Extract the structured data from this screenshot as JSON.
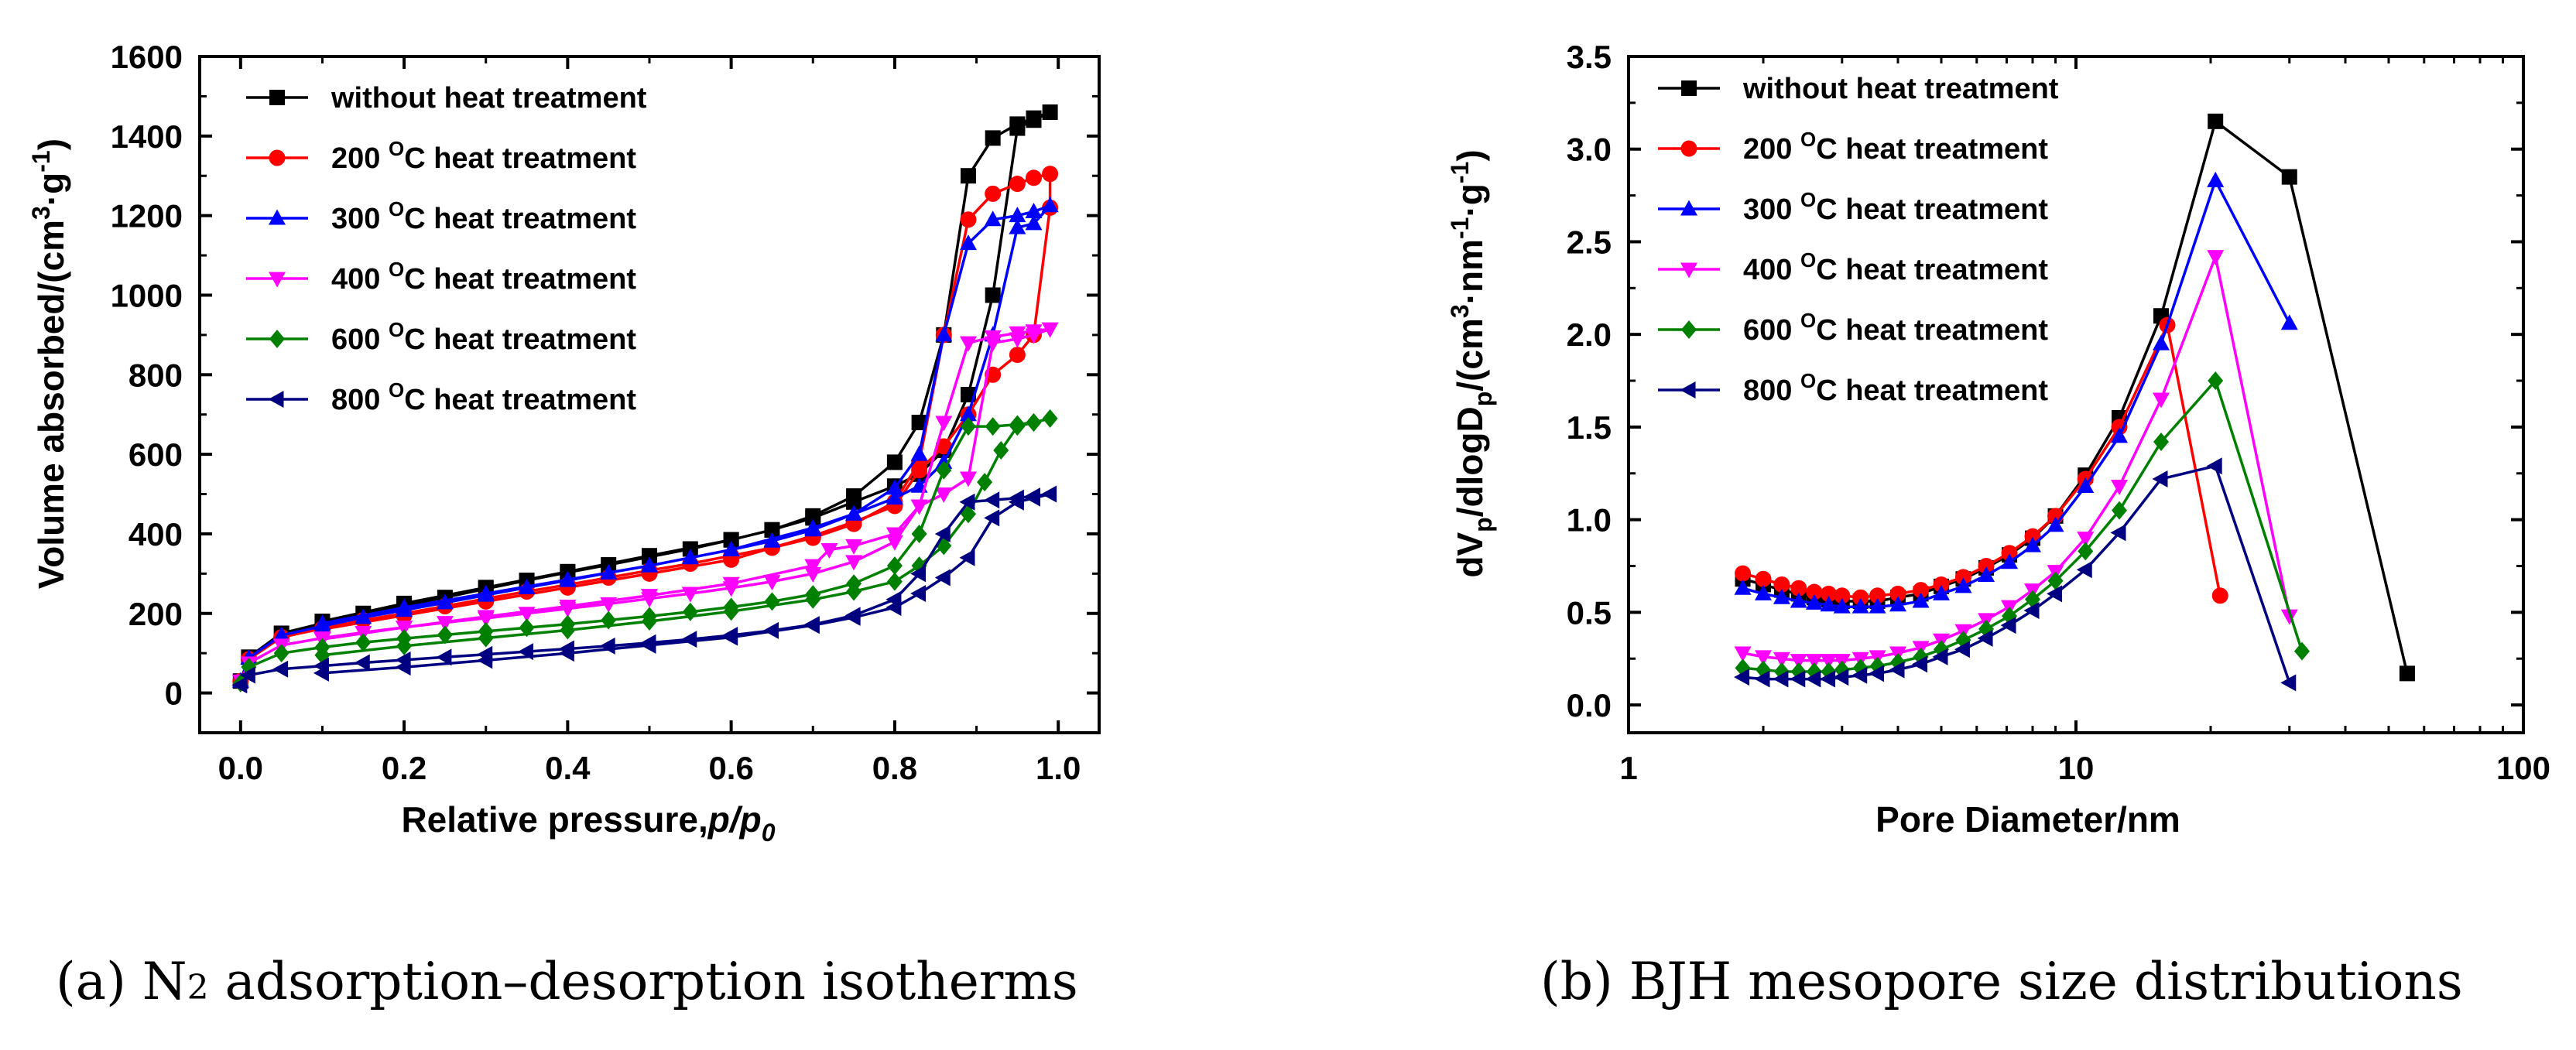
{
  "captions": {
    "a_prefix": "(a) N",
    "a_sub": "2",
    "a_suffix": " adsorption–desorption isotherms",
    "b": "(b) BJH mesopore size distributions"
  },
  "chart_data": [
    {
      "type": "line",
      "xscale": "linear",
      "title": "",
      "xlabel": "Relative pressure,",
      "xlabel_italic": "p/p",
      "xlabel_sub": "0",
      "ylabel_text": "Volume absorbed/(cm",
      "ylabel_sup1": "3",
      "ylabel_mid": "·g",
      "ylabel_sup2": "-1",
      "ylabel_end": ")",
      "xlim": [
        -0.05,
        1.05
      ],
      "ylim": [
        -100,
        1600
      ],
      "xticks": [
        0.0,
        0.2,
        0.4,
        0.6,
        0.8,
        1.0
      ],
      "xtick_labels": [
        "0.0",
        "0.2",
        "0.4",
        "0.6",
        "0.8",
        "1.0"
      ],
      "yticks": [
        0,
        200,
        400,
        600,
        800,
        1000,
        1200,
        1400,
        1600
      ],
      "ytick_labels": [
        "0",
        "200",
        "400",
        "600",
        "800",
        "1000",
        "1200",
        "1400",
        "1600"
      ],
      "legend_position": "top-left",
      "series": [
        {
          "name": "without heat treatment",
          "temp": "",
          "color": "#000000",
          "marker": "square",
          "x": [
            0.0,
            0.01,
            0.05,
            0.1,
            0.15,
            0.2,
            0.25,
            0.3,
            0.35,
            0.4,
            0.45,
            0.5,
            0.55,
            0.6,
            0.65,
            0.7,
            0.75,
            0.8,
            0.83,
            0.86,
            0.89,
            0.92,
            0.95,
            0.97,
            0.99,
            0.97,
            0.95,
            0.92,
            0.89,
            0.86,
            0.83,
            0.8,
            0.75,
            0.7,
            0.65,
            0.6,
            0.5,
            0.4,
            0.3,
            0.2,
            0.1
          ],
          "y": [
            30,
            90,
            150,
            175,
            200,
            220,
            240,
            262,
            283,
            303,
            322,
            342,
            362,
            385,
            410,
            445,
            495,
            580,
            680,
            900,
            1300,
            1395,
            1430,
            1445,
            1460,
            1440,
            1420,
            1000,
            750,
            610,
            550,
            520,
            480,
            440,
            410,
            385,
            345,
            305,
            265,
            225,
            180
          ]
        },
        {
          "name": "200 heat treatment",
          "temp": "200",
          "color": "#ff0000",
          "marker": "circle",
          "x": [
            0.0,
            0.01,
            0.05,
            0.1,
            0.15,
            0.2,
            0.25,
            0.3,
            0.35,
            0.4,
            0.45,
            0.5,
            0.55,
            0.6,
            0.65,
            0.7,
            0.75,
            0.8,
            0.83,
            0.86,
            0.89,
            0.92,
            0.95,
            0.97,
            0.99,
            0.99,
            0.97,
            0.95,
            0.92,
            0.89,
            0.86,
            0.83,
            0.8,
            0.75,
            0.7,
            0.6,
            0.5,
            0.4,
            0.3,
            0.2,
            0.1
          ],
          "y": [
            30,
            85,
            140,
            162,
            183,
            200,
            218,
            237,
            255,
            272,
            290,
            308,
            325,
            345,
            365,
            390,
            425,
            480,
            580,
            900,
            1190,
            1255,
            1280,
            1295,
            1305,
            1220,
            900,
            850,
            800,
            700,
            620,
            560,
            470,
            430,
            395,
            335,
            300,
            265,
            230,
            195,
            160
          ]
        },
        {
          "name": "300 heat treatment",
          "temp": "300",
          "color": "#0000ff",
          "marker": "triangle-up",
          "x": [
            0.0,
            0.01,
            0.05,
            0.1,
            0.15,
            0.2,
            0.25,
            0.3,
            0.35,
            0.4,
            0.45,
            0.5,
            0.55,
            0.6,
            0.65,
            0.7,
            0.75,
            0.8,
            0.83,
            0.86,
            0.89,
            0.92,
            0.95,
            0.97,
            0.99,
            0.97,
            0.95,
            0.92,
            0.89,
            0.86,
            0.83,
            0.8,
            0.75,
            0.7,
            0.6,
            0.5,
            0.4,
            0.3,
            0.2,
            0.1
          ],
          "y": [
            30,
            88,
            145,
            168,
            190,
            208,
            227,
            246,
            265,
            283,
            302,
            320,
            340,
            360,
            382,
            410,
            450,
            515,
            600,
            900,
            1130,
            1190,
            1200,
            1210,
            1225,
            1180,
            1170,
            900,
            700,
            580,
            520,
            490,
            450,
            415,
            360,
            320,
            285,
            250,
            215,
            175
          ]
        },
        {
          "name": "400 heat treatment",
          "temp": "400",
          "color": "#ff00ff",
          "marker": "triangle-down",
          "x": [
            0.0,
            0.01,
            0.05,
            0.1,
            0.15,
            0.2,
            0.25,
            0.3,
            0.35,
            0.4,
            0.45,
            0.5,
            0.55,
            0.6,
            0.65,
            0.7,
            0.75,
            0.8,
            0.83,
            0.86,
            0.89,
            0.92,
            0.95,
            0.97,
            0.99,
            0.97,
            0.95,
            0.92,
            0.89,
            0.86,
            0.83,
            0.8,
            0.75,
            0.72,
            0.7,
            0.6,
            0.5,
            0.4,
            0.3,
            0.2,
            0.1
          ],
          "y": [
            30,
            75,
            120,
            138,
            152,
            165,
            177,
            188,
            200,
            212,
            224,
            237,
            250,
            264,
            280,
            300,
            330,
            380,
            470,
            680,
            880,
            895,
            905,
            910,
            915,
            900,
            890,
            880,
            540,
            500,
            470,
            400,
            370,
            360,
            320,
            275,
            245,
            218,
            192,
            165,
            135
          ]
        },
        {
          "name": "600 heat treatment",
          "temp": "600",
          "color": "#008000",
          "marker": "diamond",
          "x": [
            0.0,
            0.01,
            0.05,
            0.1,
            0.15,
            0.2,
            0.25,
            0.3,
            0.35,
            0.4,
            0.45,
            0.5,
            0.55,
            0.6,
            0.65,
            0.7,
            0.75,
            0.8,
            0.83,
            0.86,
            0.89,
            0.92,
            0.95,
            0.97,
            0.99,
            0.97,
            0.95,
            0.93,
            0.91,
            0.89,
            0.86,
            0.83,
            0.8,
            0.75,
            0.7,
            0.6,
            0.5,
            0.4,
            0.3,
            0.2,
            0.1
          ],
          "y": [
            25,
            65,
            100,
            115,
            127,
            137,
            146,
            155,
            164,
            173,
            183,
            193,
            204,
            216,
            230,
            248,
            275,
            320,
            400,
            560,
            670,
            670,
            675,
            680,
            690,
            680,
            670,
            610,
            530,
            450,
            370,
            320,
            280,
            255,
            235,
            205,
            180,
            158,
            138,
            118,
            95
          ]
        },
        {
          "name": "800 heat treatment",
          "temp": "800",
          "color": "#000080",
          "marker": "triangle-left",
          "x": [
            0.0,
            0.01,
            0.05,
            0.1,
            0.15,
            0.2,
            0.25,
            0.3,
            0.35,
            0.4,
            0.45,
            0.5,
            0.55,
            0.6,
            0.65,
            0.7,
            0.75,
            0.8,
            0.83,
            0.86,
            0.89,
            0.92,
            0.95,
            0.97,
            0.99,
            0.97,
            0.95,
            0.92,
            0.89,
            0.86,
            0.83,
            0.8,
            0.75,
            0.7,
            0.6,
            0.5,
            0.4,
            0.3,
            0.2,
            0.1
          ],
          "y": [
            20,
            45,
            60,
            68,
            76,
            83,
            90,
            97,
            104,
            111,
            118,
            126,
            135,
            145,
            157,
            172,
            195,
            235,
            300,
            400,
            480,
            485,
            490,
            495,
            500,
            490,
            480,
            440,
            340,
            290,
            250,
            215,
            190,
            170,
            140,
            120,
            100,
            82,
            65,
            50
          ]
        }
      ]
    },
    {
      "type": "line",
      "xscale": "log",
      "title": "",
      "xlabel": "Pore Diameter/nm",
      "ylabel_text": "dV",
      "ylabel_sub1": "p",
      "ylabel_mid": "/dlogD",
      "ylabel_sub2": "p",
      "ylabel_mid2": "/(cm",
      "ylabel_sup1": "3",
      "ylabel_mid3": "·nm",
      "ylabel_sup2": "-1",
      "ylabel_mid4": "·g",
      "ylabel_sup3": "-1",
      "ylabel_end": ")",
      "xlim": [
        1,
        100
      ],
      "ylim": [
        -0.15,
        3.5
      ],
      "xticks": [
        1,
        10,
        100
      ],
      "xtick_labels": [
        "1",
        "10",
        "100"
      ],
      "yticks": [
        0.0,
        0.5,
        1.0,
        1.5,
        2.0,
        2.5,
        3.0,
        3.5
      ],
      "ytick_labels": [
        "0.0",
        "0.5",
        "1.0",
        "1.5",
        "2.0",
        "2.5",
        "3.0",
        "3.5"
      ],
      "legend_position": "top-left",
      "series": [
        {
          "name": "without heat treatment",
          "temp": "",
          "color": "#000000",
          "marker": "square",
          "x": [
            1.8,
            2.0,
            2.2,
            2.4,
            2.6,
            2.8,
            3.0,
            3.3,
            3.6,
            4.0,
            4.5,
            5.0,
            5.6,
            6.3,
            7.1,
            8.0,
            9.0,
            10.5,
            12.5,
            15.5,
            20.5,
            30.0,
            55.0
          ],
          "y": [
            0.68,
            0.65,
            0.62,
            0.6,
            0.58,
            0.57,
            0.56,
            0.56,
            0.56,
            0.58,
            0.6,
            0.64,
            0.68,
            0.74,
            0.81,
            0.9,
            1.02,
            1.24,
            1.55,
            2.1,
            3.15,
            2.85,
            0.17
          ]
        },
        {
          "name": "200 heat treatment",
          "temp": "200",
          "color": "#ff0000",
          "marker": "circle",
          "x": [
            1.8,
            2.0,
            2.2,
            2.4,
            2.6,
            2.8,
            3.0,
            3.3,
            3.6,
            4.0,
            4.5,
            5.0,
            5.6,
            6.3,
            7.1,
            8.0,
            9.0,
            10.5,
            12.5,
            16.0,
            21.0
          ],
          "y": [
            0.71,
            0.68,
            0.65,
            0.63,
            0.61,
            0.6,
            0.59,
            0.58,
            0.59,
            0.6,
            0.62,
            0.65,
            0.69,
            0.75,
            0.82,
            0.91,
            1.02,
            1.22,
            1.5,
            2.05,
            0.59
          ]
        },
        {
          "name": "300 heat treatment",
          "temp": "300",
          "color": "#0000ff",
          "marker": "triangle-up",
          "x": [
            1.8,
            2.0,
            2.2,
            2.4,
            2.6,
            2.8,
            3.0,
            3.3,
            3.6,
            4.0,
            4.5,
            5.0,
            5.6,
            6.3,
            7.1,
            8.0,
            9.0,
            10.5,
            12.5,
            15.5,
            20.5,
            30.0
          ],
          "y": [
            0.63,
            0.6,
            0.58,
            0.56,
            0.55,
            0.54,
            0.53,
            0.53,
            0.53,
            0.54,
            0.56,
            0.6,
            0.64,
            0.7,
            0.77,
            0.86,
            0.97,
            1.18,
            1.45,
            1.95,
            2.83,
            2.06
          ]
        },
        {
          "name": "400 heat treatment",
          "temp": "400",
          "color": "#ff00ff",
          "marker": "triangle-down",
          "x": [
            1.8,
            2.0,
            2.2,
            2.4,
            2.6,
            2.8,
            3.0,
            3.3,
            3.6,
            4.0,
            4.5,
            5.0,
            5.6,
            6.3,
            7.1,
            8.0,
            9.0,
            10.5,
            12.5,
            15.5,
            20.5,
            30.0
          ],
          "y": [
            0.28,
            0.26,
            0.25,
            0.24,
            0.24,
            0.24,
            0.24,
            0.25,
            0.26,
            0.28,
            0.31,
            0.35,
            0.4,
            0.46,
            0.53,
            0.62,
            0.72,
            0.9,
            1.18,
            1.65,
            2.42,
            0.48
          ]
        },
        {
          "name": "600 heat treatment",
          "temp": "600",
          "color": "#008000",
          "marker": "diamond",
          "x": [
            1.8,
            2.0,
            2.2,
            2.4,
            2.6,
            2.8,
            3.0,
            3.3,
            3.6,
            4.0,
            4.5,
            5.0,
            5.6,
            6.3,
            7.1,
            8.0,
            9.0,
            10.5,
            12.5,
            15.5,
            20.5,
            32.0
          ],
          "y": [
            0.2,
            0.19,
            0.18,
            0.18,
            0.18,
            0.18,
            0.19,
            0.2,
            0.21,
            0.23,
            0.26,
            0.3,
            0.35,
            0.41,
            0.48,
            0.57,
            0.67,
            0.83,
            1.05,
            1.42,
            1.75,
            0.29
          ]
        },
        {
          "name": "800 heat treatment",
          "temp": "800",
          "color": "#000080",
          "marker": "triangle-left",
          "x": [
            1.8,
            2.0,
            2.2,
            2.4,
            2.6,
            2.8,
            3.0,
            3.3,
            3.6,
            4.0,
            4.5,
            5.0,
            5.6,
            6.3,
            7.1,
            8.0,
            9.0,
            10.5,
            12.5,
            15.5,
            20.5,
            30.0
          ],
          "y": [
            0.15,
            0.14,
            0.14,
            0.14,
            0.14,
            0.14,
            0.15,
            0.16,
            0.17,
            0.19,
            0.22,
            0.26,
            0.3,
            0.36,
            0.43,
            0.51,
            0.6,
            0.73,
            0.93,
            1.22,
            1.29,
            0.12
          ]
        }
      ]
    }
  ]
}
